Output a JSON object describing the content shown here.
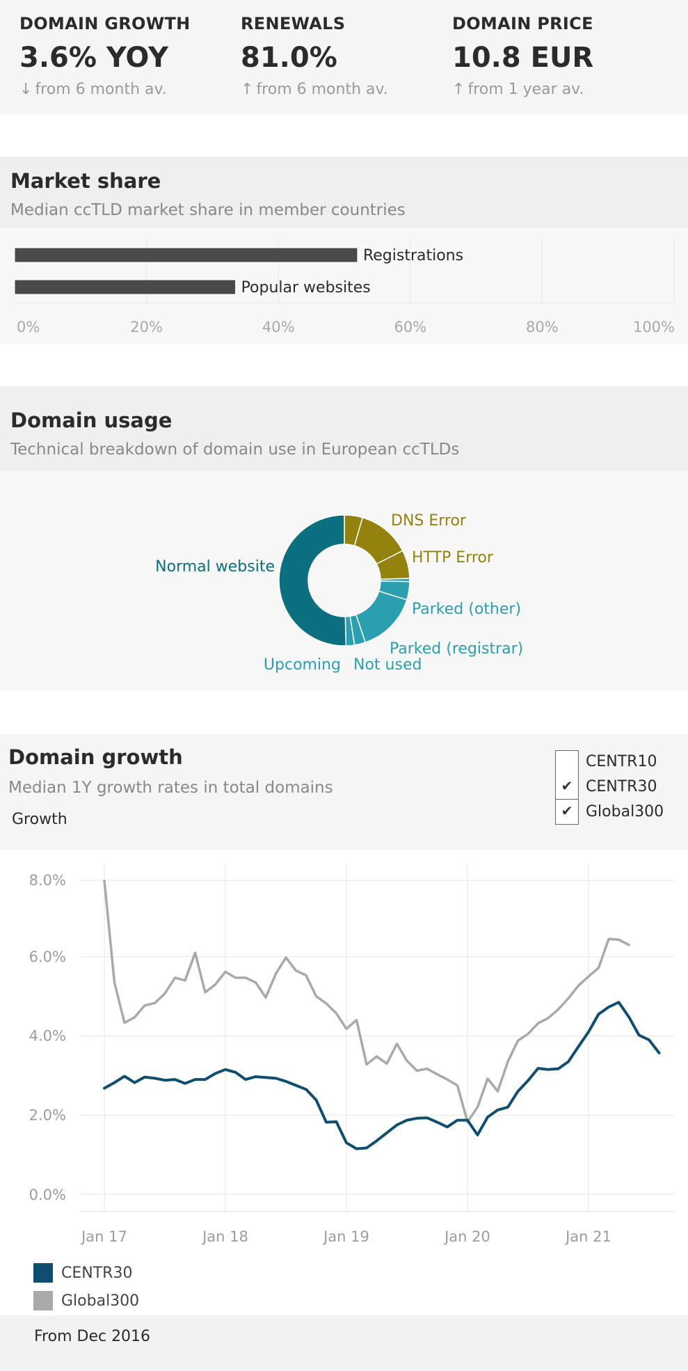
{
  "kpis": [
    {
      "label": "DOMAIN GROWTH",
      "value": "3.6% YOY",
      "arrow": "↓",
      "note": "from 6 month av."
    },
    {
      "label": "RENEWALS",
      "value": "81.0%",
      "arrow": "↑",
      "note": "from 6 month av."
    },
    {
      "label": "DOMAIN PRICE",
      "value": "10.8 EUR",
      "arrow": "↑",
      "note": "from 1 year av."
    }
  ],
  "market_share": {
    "title": "Market share",
    "subtitle": "Median ccTLD market share in member countries"
  },
  "domain_usage": {
    "title": "Domain usage",
    "subtitle": "Technical breakdown of domain use in European ccTLDs"
  },
  "domain_growth": {
    "title": "Domain growth",
    "subtitle": "Median 1Y growth rates in total domains",
    "axis_caption": "Growth",
    "filters": [
      {
        "label": "CENTR10",
        "checked": false
      },
      {
        "label": "CENTR30",
        "checked": true
      },
      {
        "label": "Global300",
        "checked": true
      }
    ],
    "footer": "From Dec 2016"
  },
  "colors": {
    "bar": "#4a4a4a",
    "teal_dark": "#0c6f80",
    "teal_light": "#2a9fb0",
    "olive": "#94820e",
    "centr30": "#0f4e70",
    "global300": "#a9a9a9",
    "grid": "#e6e6e6",
    "tick": "#9c9c9c"
  },
  "chart_data": [
    {
      "id": "market-share",
      "type": "bar",
      "orientation": "horizontal",
      "categories": [
        "Registrations",
        "Popular websites"
      ],
      "values": [
        52,
        33.5
      ],
      "xlim": [
        0,
        100
      ],
      "xticks": [
        "0%",
        "20%",
        "40%",
        "60%",
        "80%",
        "100%"
      ],
      "xtick_values": [
        0,
        20,
        40,
        60,
        80,
        100
      ],
      "grid": true
    },
    {
      "id": "domain-usage",
      "type": "pie",
      "donut": true,
      "slices": [
        {
          "label": "",
          "value": 4.5,
          "color": "olive"
        },
        {
          "label": "DNS Error",
          "value": 13,
          "color": "olive"
        },
        {
          "label": "HTTP Error",
          "value": 7,
          "color": "olive"
        },
        {
          "label": "",
          "value": 0.8,
          "color": "teal_light"
        },
        {
          "label": "Parked (other)",
          "value": 4.5,
          "color": "teal_light"
        },
        {
          "label": "Parked (registrar)",
          "value": 15,
          "color": "teal_light"
        },
        {
          "label": "Not used",
          "value": 2.7,
          "color": "teal_light"
        },
        {
          "label": "Upcoming",
          "value": 2.1,
          "color": "teal_light"
        },
        {
          "label": "Normal website",
          "value": 50.4,
          "color": "teal_dark"
        }
      ]
    },
    {
      "id": "domain-growth",
      "type": "line",
      "x_ticks": [
        "Jan 17",
        "Jan 18",
        "Jan 19",
        "Jan 20",
        "Jan 21"
      ],
      "x_tick_months": [
        1,
        13,
        25,
        37,
        49
      ],
      "y_ticks": [
        "0.0%",
        "2.0%",
        "4.0%",
        "6.0%",
        "8.0%"
      ],
      "y_tick_values": [
        0,
        2,
        4,
        6,
        8
      ],
      "ylim": [
        -0.2,
        8.3
      ],
      "grid": true,
      "legend_position": "bottom-left",
      "series": [
        {
          "name": "CENTR30",
          "color": "centr30",
          "start_month": 1,
          "values": [
            2.68,
            2.82,
            2.98,
            2.82,
            2.96,
            2.93,
            2.88,
            2.9,
            2.8,
            2.9,
            2.9,
            3.05,
            3.15,
            3.08,
            2.9,
            2.97,
            2.95,
            2.93,
            2.85,
            2.75,
            2.65,
            2.38,
            1.82,
            1.83,
            1.3,
            1.15,
            1.17,
            1.35,
            1.55,
            1.75,
            1.87,
            1.92,
            1.93,
            1.82,
            1.7,
            1.87,
            1.87,
            1.5,
            1.95,
            2.13,
            2.2,
            2.6,
            2.87,
            3.18,
            3.15,
            3.17,
            3.35,
            3.73,
            4.1,
            4.55,
            4.73,
            4.85,
            4.48,
            4.02,
            3.9,
            3.57
          ]
        },
        {
          "name": "Global300",
          "color": "global300",
          "start_month": 1,
          "values": [
            7.92,
            5.35,
            4.33,
            4.47,
            4.77,
            4.83,
            5.07,
            5.47,
            5.4,
            6.1,
            5.1,
            5.3,
            5.62,
            5.47,
            5.47,
            5.35,
            4.97,
            5.57,
            5.98,
            5.65,
            5.53,
            5.0,
            4.82,
            4.57,
            4.18,
            4.4,
            3.28,
            3.48,
            3.3,
            3.8,
            3.37,
            3.12,
            3.17,
            3.03,
            2.9,
            2.75,
            1.83,
            2.2,
            2.92,
            2.6,
            3.35,
            3.88,
            4.05,
            4.32,
            4.45,
            4.67,
            4.95,
            5.27,
            5.5,
            5.72,
            6.45,
            6.43,
            6.3
          ]
        }
      ]
    }
  ]
}
